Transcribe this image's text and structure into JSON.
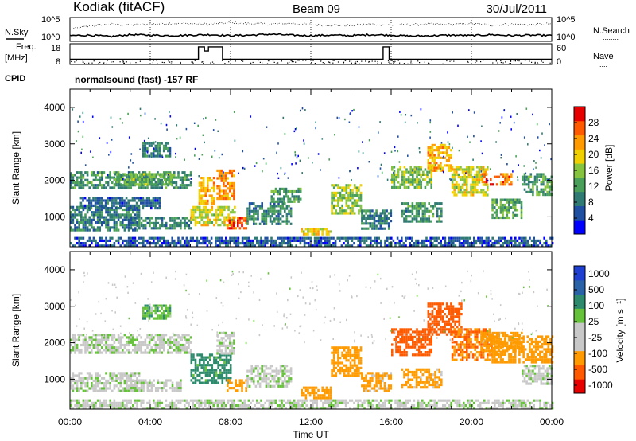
{
  "header": {
    "station": "Kodiak (fitACF)",
    "beam": "Beam 09",
    "date": "30/Jul/2011"
  },
  "side_labels": {
    "nsky": "N.Sky",
    "freq_line1": "Freq.",
    "freq_line2": "[MHz]",
    "cpid": "CPID",
    "nsearch": "N.Search",
    "nsearch_dots": "........",
    "nave": "Nave",
    "nave_dots": "...."
  },
  "noise_panel": {
    "left_ticks": [
      "10^5",
      "10^0"
    ],
    "right_ticks": [
      "10^5",
      "10^0"
    ]
  },
  "freq_panel": {
    "left_ticks": [
      "18",
      "8"
    ],
    "right_ticks": [
      "60",
      "0"
    ]
  },
  "cpid_text": "normalsound (fast) -157 RF",
  "time_axis": {
    "label": "Time UT",
    "ticks": [
      "00:00",
      "04:00",
      "08:00",
      "12:00",
      "16:00",
      "20:00",
      "00:00"
    ]
  },
  "colors": {
    "power_scale": [
      "#0000ff",
      "#1f4fa0",
      "#2f7a73",
      "#4aa05a",
      "#86c43f",
      "#f0d000",
      "#ff9a00",
      "#ff5a00",
      "#e60000"
    ],
    "velocity_scale": [
      "#1e3fd0",
      "#2a62a8",
      "#2e8a6c",
      "#66c23a",
      "#c8c8c8",
      "#c8c8c8",
      "#ff9a00",
      "#ff5a00",
      "#e60000"
    ]
  },
  "chart_data": [
    {
      "type": "line",
      "name": "noise-panel",
      "x_range_hours": [
        0,
        24
      ],
      "series": [
        {
          "values_label": "search-noise",
          "x": [
            0,
            1,
            2,
            3,
            4,
            5,
            6,
            7,
            8,
            9,
            10,
            11,
            12,
            13,
            14,
            15,
            16,
            17,
            18,
            19,
            20,
            21,
            22,
            23,
            24
          ],
          "y": [
            2.5,
            3.2,
            3.6,
            3.4,
            3.6,
            3.8,
            3.7,
            3.6,
            3.9,
            3.7,
            3.6,
            3.8,
            3.5,
            3.4,
            3.3,
            3.6,
            3.4,
            3.5,
            3.6,
            3.5,
            3.7,
            3.4,
            3.6,
            3.5,
            3.7
          ]
        },
        {
          "values_label": "sky-noise",
          "x": [
            0,
            1,
            2,
            3,
            4,
            5,
            6,
            7,
            8,
            9,
            10,
            11,
            12,
            13,
            14,
            15,
            16,
            17,
            18,
            19,
            20,
            21,
            22,
            23,
            24
          ],
          "y": [
            1.2,
            1.3,
            1.0,
            1.4,
            1.3,
            1.2,
            1.3,
            1.4,
            1.2,
            1.3,
            1.5,
            1.3,
            1.2,
            1.3,
            1.2,
            1.4,
            1.3,
            1.1,
            1.2,
            1.3,
            1.2,
            1.4,
            1.2,
            1.3,
            1.2
          ]
        }
      ],
      "ylim_log10": [
        0,
        5
      ]
    },
    {
      "type": "line",
      "name": "frequency-panel",
      "x": [
        0,
        6.4,
        6.4,
        6.7,
        6.7,
        6.9,
        6.9,
        7.6,
        7.6,
        15.6,
        15.6,
        15.9,
        15.9,
        24
      ],
      "frequency_mhz": [
        10.5,
        10.5,
        16.5,
        16.5,
        14.5,
        14.5,
        16.5,
        16.5,
        10.5,
        10.5,
        16.5,
        16.5,
        10.5,
        10.5
      ],
      "ylim": [
        8,
        18
      ],
      "nave_ylim": [
        0,
        60
      ]
    },
    {
      "type": "heatmap",
      "name": "power",
      "xlabel": "Time UT",
      "ylabel": "Slant Range [km]",
      "colorbar_label": "Power [dB]",
      "colorbar_ticks": [
        "4",
        "8",
        "12",
        "16",
        "20",
        "24",
        "28"
      ],
      "value_range": [
        0,
        32
      ],
      "y_ticks": [
        "1000",
        "2000",
        "3000",
        "4000"
      ],
      "ylim": [
        180,
        4500
      ],
      "blobs": [
        {
          "t0": 0.0,
          "t1": 6.0,
          "r0": 1800,
          "r1": 2250,
          "value": 11
        },
        {
          "t0": 0.0,
          "t1": 3.5,
          "r0": 650,
          "r1": 1300,
          "value": 9
        },
        {
          "t0": 0.5,
          "t1": 4.5,
          "r0": 1250,
          "r1": 1550,
          "value": 7
        },
        {
          "t0": 2.2,
          "t1": 5.0,
          "r0": 1900,
          "r1": 2200,
          "value": 14
        },
        {
          "t0": 3.6,
          "t1": 5.0,
          "r0": 2700,
          "r1": 3050,
          "value": 10
        },
        {
          "t0": 3.0,
          "t1": 6.0,
          "r0": 700,
          "r1": 1000,
          "value": 10
        },
        {
          "t0": 6.0,
          "t1": 8.2,
          "r0": 800,
          "r1": 1300,
          "value": 18
        },
        {
          "t0": 7.3,
          "t1": 8.2,
          "r0": 1500,
          "r1": 2300,
          "value": 24
        },
        {
          "t0": 6.4,
          "t1": 7.2,
          "r0": 1400,
          "r1": 2100,
          "value": 22
        },
        {
          "t0": 7.8,
          "t1": 8.8,
          "r0": 700,
          "r1": 1000,
          "value": 27
        },
        {
          "t0": 8.8,
          "t1": 11.0,
          "r0": 800,
          "r1": 1400,
          "value": 10
        },
        {
          "t0": 10.0,
          "t1": 11.5,
          "r0": 1400,
          "r1": 1800,
          "value": 12
        },
        {
          "t0": 11.5,
          "t1": 13.0,
          "r0": 500,
          "r1": 700,
          "value": 20
        },
        {
          "t0": 13.0,
          "t1": 14.5,
          "r0": 1100,
          "r1": 1900,
          "value": 16
        },
        {
          "t0": 14.5,
          "t1": 16.0,
          "r0": 700,
          "r1": 1200,
          "value": 9
        },
        {
          "t0": 16.0,
          "t1": 18.0,
          "r0": 1800,
          "r1": 2400,
          "value": 15
        },
        {
          "t0": 17.8,
          "t1": 19.0,
          "r0": 2300,
          "r1": 3000,
          "value": 22
        },
        {
          "t0": 19.0,
          "t1": 20.8,
          "r0": 1600,
          "r1": 2400,
          "value": 18
        },
        {
          "t0": 20.5,
          "t1": 22.0,
          "r0": 1900,
          "r1": 2200,
          "value": 25
        },
        {
          "t0": 16.5,
          "t1": 18.5,
          "r0": 900,
          "r1": 1400,
          "value": 11
        },
        {
          "t0": 21.0,
          "t1": 22.5,
          "r0": 1000,
          "r1": 1500,
          "value": 13
        },
        {
          "t0": 22.5,
          "t1": 24.0,
          "r0": 1600,
          "r1": 2200,
          "value": 12
        },
        {
          "t0": 0.0,
          "t1": 24.0,
          "r0": 200,
          "r1": 450,
          "value": 6
        }
      ]
    },
    {
      "type": "heatmap",
      "name": "velocity",
      "xlabel": "Time UT",
      "ylabel": "Slant Range [km]",
      "colorbar_label": "Velocity [m s⁻¹]",
      "colorbar_ticks": [
        "1000",
        "500",
        "100",
        "25",
        "-25",
        "-100",
        "-500",
        "-1000"
      ],
      "y_ticks": [
        "1000",
        "2000",
        "3000",
        "4000"
      ],
      "ylim": [
        180,
        4500
      ],
      "blobs": [
        {
          "t0": 0.0,
          "t1": 6.0,
          "r0": 1750,
          "r1": 2250,
          "value": 0
        },
        {
          "t0": 0.0,
          "t1": 3.5,
          "r0": 650,
          "r1": 1200,
          "value": 0
        },
        {
          "t0": 3.6,
          "t1": 5.0,
          "r0": 2700,
          "r1": 3050,
          "value": 80
        },
        {
          "t0": 3.0,
          "t1": 5.5,
          "r0": 700,
          "r1": 1000,
          "value": 0
        },
        {
          "t0": 6.0,
          "t1": 8.0,
          "r0": 900,
          "r1": 1700,
          "value": 150
        },
        {
          "t0": 7.3,
          "t1": 8.2,
          "r0": 1700,
          "r1": 2300,
          "value": 0
        },
        {
          "t0": 7.8,
          "t1": 8.8,
          "r0": 700,
          "r1": 1000,
          "value": -200
        },
        {
          "t0": 8.8,
          "t1": 11.0,
          "r0": 800,
          "r1": 1400,
          "value": 0
        },
        {
          "t0": 11.5,
          "t1": 13.0,
          "r0": 500,
          "r1": 800,
          "value": -200
        },
        {
          "t0": 13.0,
          "t1": 14.5,
          "r0": 1100,
          "r1": 1900,
          "value": -200
        },
        {
          "t0": 14.5,
          "t1": 16.0,
          "r0": 700,
          "r1": 1200,
          "value": -150
        },
        {
          "t0": 16.0,
          "t1": 18.0,
          "r0": 1700,
          "r1": 2400,
          "value": -700
        },
        {
          "t0": 17.8,
          "t1": 19.5,
          "r0": 2200,
          "r1": 3100,
          "value": -800
        },
        {
          "t0": 19.0,
          "t1": 21.0,
          "r0": 1500,
          "r1": 2400,
          "value": -500
        },
        {
          "t0": 20.5,
          "t1": 22.5,
          "r0": 1800,
          "r1": 2300,
          "value": -400
        },
        {
          "t0": 16.5,
          "t1": 18.5,
          "r0": 800,
          "r1": 1300,
          "value": -150
        },
        {
          "t0": 21.0,
          "t1": 24.0,
          "r0": 1500,
          "r1": 2200,
          "value": -200
        },
        {
          "t0": 22.5,
          "t1": 24.0,
          "r0": 900,
          "r1": 1400,
          "value": 0
        },
        {
          "t0": 0.0,
          "t1": 24.0,
          "r0": 200,
          "r1": 450,
          "value": 0
        }
      ]
    }
  ]
}
